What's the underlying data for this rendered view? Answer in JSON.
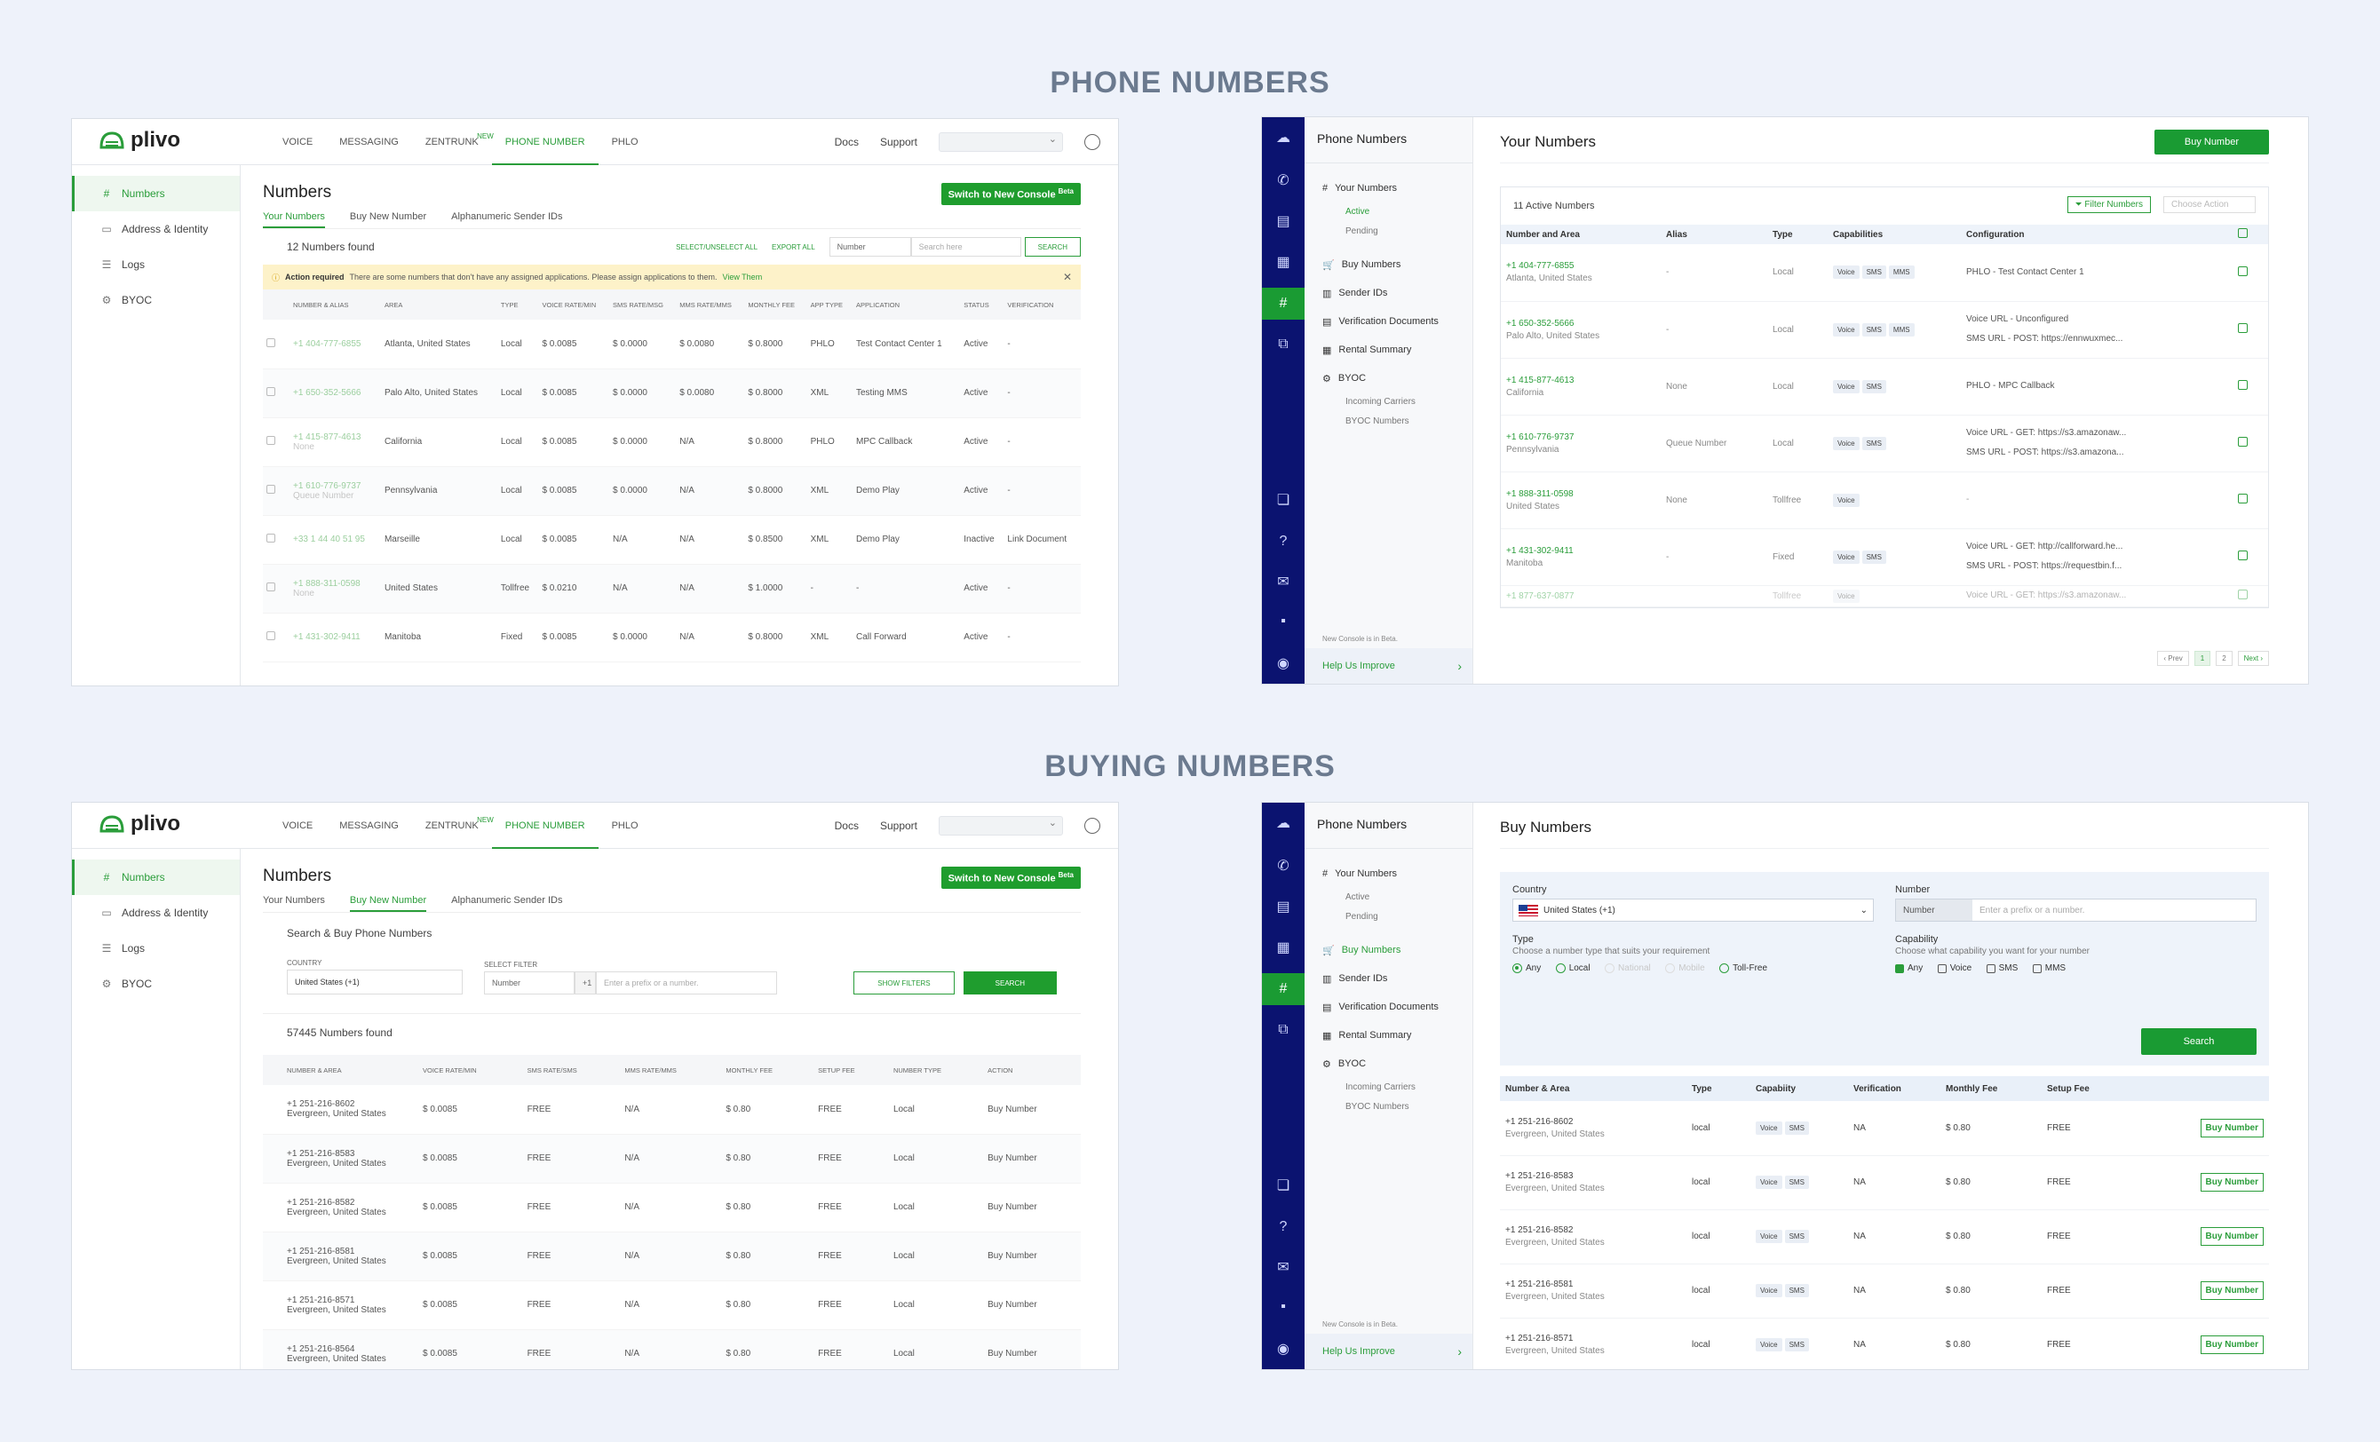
{
  "sections": {
    "phone_numbers": "PHONE NUMBERS",
    "buying_numbers": "BUYING NUMBERS"
  },
  "old": {
    "logo": "plivo",
    "nav": [
      "VOICE",
      "MESSAGING",
      "ZENTRUNK",
      "PHONE NUMBER",
      "PHLO"
    ],
    "nav_new_badge": "NEW",
    "docs": "Docs",
    "support": "Support",
    "sidebar": [
      "Numbers",
      "Address & Identity",
      "Logs",
      "BYOC"
    ],
    "title": "Numbers",
    "switch": "Switch to New Console",
    "switch_badge": "Beta",
    "tabs": [
      "Your Numbers",
      "Buy New Number",
      "Alphanumeric Sender IDs"
    ],
    "found": "12 Numbers found",
    "select_all": "SELECT/UNSELECT ALL",
    "export_all": "EXPORT ALL",
    "filter_sel": "Number",
    "search_ph": "Search here",
    "search_btn": "SEARCH",
    "alert_b": "Action required",
    "alert_text": "There are some numbers that don't have any assigned applications. Please assign applications to them.",
    "alert_link": "View Them",
    "headers": [
      "NUMBER & ALIAS",
      "AREA",
      "TYPE",
      "VOICE RATE/MIN",
      "SMS RATE/MSG",
      "MMS RATE/MMS",
      "MONTHLY FEE",
      "APP TYPE",
      "APPLICATION",
      "STATUS",
      "VERIFICATION"
    ],
    "rows": [
      {
        "num": "+1 404-777-6855",
        "alias": "",
        "area": "Atlanta, United States",
        "type": "Local",
        "voice": "$ 0.0085",
        "sms": "$ 0.0000",
        "mms": "$ 0.0080",
        "fee": "$ 0.8000",
        "app": "PHLO",
        "appl": "Test Contact Center 1",
        "status": "Active",
        "ver": "-"
      },
      {
        "num": "+1 650-352-5666",
        "alias": "",
        "area": "Palo Alto, United States",
        "type": "Local",
        "voice": "$ 0.0085",
        "sms": "$ 0.0000",
        "mms": "$ 0.0080",
        "fee": "$ 0.8000",
        "app": "XML",
        "appl": "Testing MMS",
        "status": "Active",
        "ver": "-"
      },
      {
        "num": "+1 415-877-4613",
        "alias": "None",
        "area": "California",
        "type": "Local",
        "voice": "$ 0.0085",
        "sms": "$ 0.0000",
        "mms": "N/A",
        "fee": "$ 0.8000",
        "app": "PHLO",
        "appl": "MPC Callback",
        "status": "Active",
        "ver": "-"
      },
      {
        "num": "+1 610-776-9737",
        "alias": "Queue Number",
        "area": "Pennsylvania",
        "type": "Local",
        "voice": "$ 0.0085",
        "sms": "$ 0.0000",
        "mms": "N/A",
        "fee": "$ 0.8000",
        "app": "XML",
        "appl": "Demo Play",
        "status": "Active",
        "ver": "-"
      },
      {
        "num": "+33 1 44 40 51 95",
        "alias": "",
        "area": "Marseille",
        "type": "Local",
        "voice": "$ 0.0085",
        "sms": "N/A",
        "mms": "N/A",
        "fee": "$ 0.8500",
        "app": "XML",
        "appl": "Demo Play",
        "status": "Inactive",
        "ver": "Link Document"
      },
      {
        "num": "+1 888-311-0598",
        "alias": "None",
        "area": "United States",
        "type": "Tollfree",
        "voice": "$ 0.0210",
        "sms": "N/A",
        "mms": "N/A",
        "fee": "$ 1.0000",
        "app": "-",
        "appl": "-",
        "status": "Active",
        "ver": "-"
      },
      {
        "num": "+1 431-302-9411",
        "alias": "",
        "area": "Manitoba",
        "type": "Fixed",
        "voice": "$ 0.0085",
        "sms": "$ 0.0000",
        "mms": "N/A",
        "fee": "$ 0.8000",
        "app": "XML",
        "appl": "Call Forward",
        "status": "Active",
        "ver": "-"
      }
    ],
    "buy_heading": "Search & Buy Phone Numbers",
    "country_label": "COUNTRY",
    "country_val": "United States (+1)",
    "select_filter_label": "SELECT FILTER",
    "prefix": "+1",
    "prefix_ph": "Enter a prefix or a number.",
    "show_filters": "SHOW FILTERS",
    "search": "SEARCH",
    "buy_found": "57445 Numbers found",
    "buy_headers": [
      "NUMBER & AREA",
      "VOICE RATE/MIN",
      "SMS RATE/SMS",
      "MMS RATE/MMS",
      "MONTHLY FEE",
      "SETUP FEE",
      "NUMBER TYPE",
      "ACTION"
    ],
    "buy_rows": [
      {
        "num": "+1 251-216-8602",
        "area": "Evergreen, United States"
      },
      {
        "num": "+1 251-216-8583",
        "area": "Evergreen, United States"
      },
      {
        "num": "+1 251-216-8582",
        "area": "Evergreen, United States"
      },
      {
        "num": "+1 251-216-8581",
        "area": "Evergreen, United States"
      },
      {
        "num": "+1 251-216-8571",
        "area": "Evergreen, United States"
      },
      {
        "num": "+1 251-216-8564",
        "area": "Evergreen, United States"
      }
    ],
    "buy_row_vals": {
      "voice": "$ 0.0085",
      "sms": "FREE",
      "mms": "N/A",
      "fee": "$ 0.80",
      "setup": "FREE",
      "type": "Local",
      "action": "Buy Number"
    }
  },
  "new": {
    "side_title": "Phone Numbers",
    "side_items": [
      "Your Numbers",
      "Active",
      "Pending",
      "Buy Numbers",
      "Sender IDs",
      "Verification Documents",
      "Rental Summary",
      "BYOC",
      "Incoming Carriers",
      "BYOC Numbers"
    ],
    "beta_note": "New Console is in Beta.",
    "help": "Help Us Improve",
    "title": "Your Numbers",
    "buy_btn": "Buy Number",
    "active_count": "11 Active Numbers",
    "filter_btn": "Filter Numbers",
    "choose_action": "Choose Action",
    "headers": [
      "Number and Area",
      "Alias",
      "Type",
      "Capabilities",
      "Configuration"
    ],
    "rows": [
      {
        "num": "+1 404-777-6855",
        "area": "Atlanta, United States",
        "alias": "-",
        "type": "Local",
        "caps": [
          "Voice",
          "SMS",
          "MMS"
        ],
        "cfg": [
          "PHLO - Test Contact Center 1"
        ]
      },
      {
        "num": "+1 650-352-5666",
        "area": "Palo Alto, United States",
        "alias": "-",
        "type": "Local",
        "caps": [
          "Voice",
          "SMS",
          "MMS"
        ],
        "cfg": [
          "Voice URL - Unconfigured",
          "SMS URL - POST: https://ennwuxmec..."
        ]
      },
      {
        "num": "+1 415-877-4613",
        "area": "California",
        "alias": "None",
        "type": "Local",
        "caps": [
          "Voice",
          "SMS"
        ],
        "cfg": [
          "PHLO - MPC Callback"
        ]
      },
      {
        "num": "+1 610-776-9737",
        "area": "Pennsylvania",
        "alias": "Queue Number",
        "type": "Local",
        "caps": [
          "Voice",
          "SMS"
        ],
        "cfg": [
          "Voice URL - GET: https://s3.amazonaw...",
          "SMS URL - POST: https://s3.amazona..."
        ]
      },
      {
        "num": "+1 888-311-0598",
        "area": "United States",
        "alias": "None",
        "type": "Tollfree",
        "caps": [
          "Voice"
        ],
        "cfg": [
          "-"
        ]
      },
      {
        "num": "+1 431-302-9411",
        "area": "Manitoba",
        "alias": "-",
        "type": "Fixed",
        "caps": [
          "Voice",
          "SMS"
        ],
        "cfg": [
          "Voice URL - GET: http://callforward.he...",
          "SMS URL - POST: https://requestbin.f..."
        ]
      },
      {
        "num": "+1 877-637-0877",
        "area": "",
        "alias": "",
        "type": "Tollfree",
        "caps": [
          "Voice"
        ],
        "cfg": [
          "Voice URL - GET: https://s3.amazonaw..."
        ]
      }
    ],
    "pager": [
      "‹ Prev",
      "1",
      "2",
      "Next ›"
    ],
    "buy_title": "Buy Numbers",
    "country_label": "Country",
    "country_val": "United States (+1)",
    "number_label": "Number",
    "number_sel": "Number",
    "number_ph": "Enter a prefix or a number.",
    "type_label": "Type",
    "type_help": "Choose a number type that suits your requirement",
    "types": [
      "Any",
      "Local",
      "National",
      "Mobile",
      "Toll-Free"
    ],
    "cap_label": "Capability",
    "cap_help": "Choose what capability you want for your number",
    "caps": [
      "Any",
      "Voice",
      "SMS",
      "MMS"
    ],
    "search": "Search",
    "buy_headers": [
      "Number & Area",
      "Type",
      "Capabiity",
      "Verification",
      "Monthly Fee",
      "Setup Fee"
    ],
    "buy_rows": [
      {
        "num": "+1 251-216-8602",
        "area": "Evergreen, United States"
      },
      {
        "num": "+1 251-216-8583",
        "area": "Evergreen, United States"
      },
      {
        "num": "+1 251-216-8582",
        "area": "Evergreen, United States"
      },
      {
        "num": "+1 251-216-8581",
        "area": "Evergreen, United States"
      },
      {
        "num": "+1 251-216-8571",
        "area": "Evergreen, United States"
      }
    ],
    "buy_vals": {
      "type": "local",
      "caps": [
        "Voice",
        "SMS"
      ],
      "ver": "NA",
      "fee": "$ 0.80",
      "setup": "FREE",
      "action": "Buy Number"
    }
  }
}
